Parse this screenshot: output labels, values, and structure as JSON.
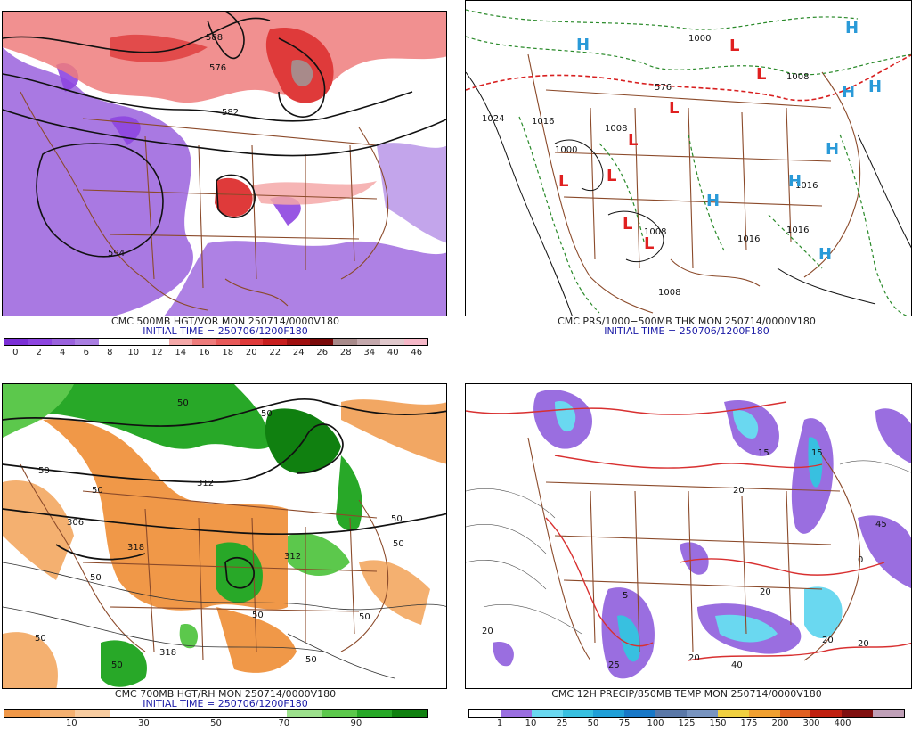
{
  "panels": [
    {
      "id": "vor",
      "title": "CMC 500MB HGT/VOR MON 250714/0000V180",
      "initial": "INITIAL TIME = 250706/1200F180",
      "legend_colors": [
        "#7b2fd6",
        "#8d45e0",
        "#9a62dd",
        "#aa7fe2",
        "#ffffff",
        "#ffffff",
        "#ffffff",
        "#f4a8a8",
        "#ee7c7c",
        "#e85a5a",
        "#df3a3a",
        "#c81e1e",
        "#a01010",
        "#7a0a0a",
        "#a88a8a",
        "#c4a8ac",
        "#e0c8cc",
        "#f6b8c8"
      ],
      "legend_ticks": [
        "0",
        "2",
        "4",
        "6",
        "8",
        "10",
        "12",
        "14",
        "16",
        "18",
        "20",
        "22",
        "24",
        "26",
        "28",
        "34",
        "40",
        "46"
      ],
      "contour_labels": [
        "588",
        "576",
        "582",
        "594"
      ]
    },
    {
      "id": "prs",
      "title": "CMC PRS/1000−500MB THK MON 250714/0000V180",
      "initial": "INITIAL TIME = 250706/1200F180",
      "contour_labels": [
        "1024",
        "1016",
        "1008",
        "1000",
        "1008",
        "1008",
        "1016",
        "1016",
        "1016",
        "1000",
        "1008",
        "576"
      ],
      "highs": [
        "H",
        "H",
        "H",
        "H",
        "H",
        "H",
        "H",
        "H"
      ],
      "lows": [
        "L",
        "L",
        "L",
        "L",
        "L",
        "L",
        "L",
        "L"
      ]
    },
    {
      "id": "rh",
      "title": "CMC 700MB HGT/RH MON 250714/0000V180",
      "initial": "INITIAL TIME = 250706/1200F180",
      "legend_colors": [
        "#f09848",
        "#f4b070",
        "#f8cca0",
        "#ffffff",
        "#ffffff",
        "#ffffff",
        "#ffffff",
        "#ffffff",
        "#9ce08c",
        "#5cc84c",
        "#28a828",
        "#108010"
      ],
      "legend_ticks": [
        "10",
        "30",
        "50",
        "70",
        "90"
      ],
      "contour_labels": [
        "50",
        "50",
        "50",
        "50",
        "50",
        "50",
        "50",
        "50",
        "50",
        "50",
        "50",
        "318",
        "312",
        "306",
        "312",
        "318",
        "50"
      ]
    },
    {
      "id": "precip",
      "title": "CMC 12H PRECIP/850MB TEMP MON 250714/0000V180",
      "initial": "",
      "legend_colors": [
        "#ffffff",
        "#9a6ee0",
        "#6ad8f0",
        "#38c0e0",
        "#20a0d8",
        "#1878c8",
        "#5a78a8",
        "#7894c0",
        "#f0d040",
        "#f0a030",
        "#e06020",
        "#c02010",
        "#801010",
        "#c0a0b8"
      ],
      "legend_ticks": [
        "1",
        "10",
        "25",
        "50",
        "75",
        "100",
        "125",
        "150",
        "175",
        "200",
        "300",
        "400"
      ],
      "contour_labels": [
        "20",
        "20",
        "20",
        "15",
        "15",
        "45",
        "40",
        "20",
        "20",
        "25",
        "5",
        "0",
        "20"
      ]
    }
  ]
}
